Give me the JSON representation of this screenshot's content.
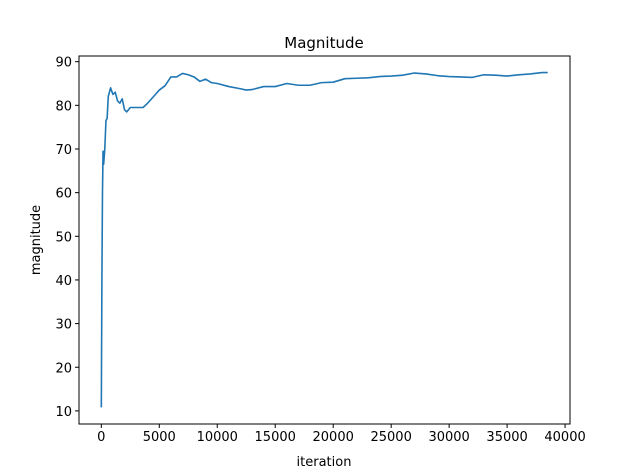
{
  "chart_data": {
    "type": "line",
    "title": "Magnitude",
    "x_label": "iteration",
    "y_label": "magnitude",
    "color": "#1f77b4",
    "x": [
      0,
      50,
      100,
      150,
      200,
      300,
      400,
      500,
      600,
      800,
      1000,
      1200,
      1400,
      1600,
      1800,
      2000,
      2200,
      2500,
      2800,
      3200,
      3600,
      4000,
      4500,
      5000,
      5500,
      6000,
      6500,
      7000,
      7500,
      8000,
      8500,
      9000,
      9500,
      10000,
      11000,
      12000,
      12500,
      13000,
      14000,
      15000,
      16000,
      17000,
      18000,
      19000,
      20000,
      21000,
      22000,
      23000,
      24000,
      25000,
      26000,
      27000,
      28000,
      29000,
      30000,
      31000,
      32000,
      33000,
      34000,
      35000,
      36000,
      37000,
      38000,
      38500
    ],
    "values": [
      10.8,
      40,
      60,
      69.5,
      66.5,
      70,
      76.5,
      77,
      82,
      84,
      82.5,
      83,
      81,
      80.5,
      81.5,
      79,
      78.5,
      79.5,
      79.5,
      79.5,
      79.5,
      80.5,
      82,
      83.5,
      84.5,
      86.5,
      86.5,
      87.3,
      87,
      86.5,
      85.5,
      86,
      85.2,
      85,
      84.3,
      83.8,
      83.5,
      83.6,
      84.3,
      84.3,
      85,
      84.6,
      84.6,
      85.2,
      85.3,
      86.1,
      86.2,
      86.3,
      86.6,
      86.7,
      86.9,
      87.4,
      87.2,
      86.8,
      86.6,
      86.5,
      86.4,
      87.0,
      86.9,
      86.7,
      87.0,
      87.2,
      87.5,
      87.5
    ],
    "xlim": [
      -1925,
      40425
    ],
    "ylim": [
      7.0,
      91.3
    ],
    "xticks": [
      0,
      5000,
      10000,
      15000,
      20000,
      25000,
      30000,
      35000,
      40000
    ],
    "yticks": [
      10,
      20,
      30,
      40,
      50,
      60,
      70,
      80,
      90
    ]
  }
}
